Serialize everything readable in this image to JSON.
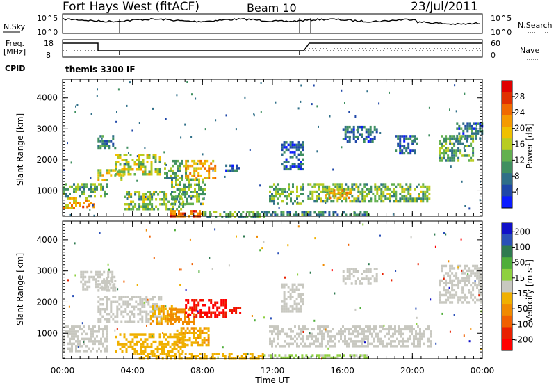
{
  "header": {
    "station": "Fort Hays West (fitACF)",
    "beam": "Beam 10",
    "date": "23/Jul/2011"
  },
  "panels": {
    "noise_left_label": "N.Sky",
    "noise_left_ticks": [
      "10^5",
      "10^0"
    ],
    "noise_right_ticks": [
      "10^5",
      "10^0"
    ],
    "noise_right_label": "N.Search",
    "freq_label_1": "Freq.",
    "freq_label_2": "[MHz]",
    "freq_ticks": [
      "18",
      "8"
    ],
    "nave_ticks": [
      "60",
      "0"
    ],
    "nave_label": "Nave",
    "cpid_label": "CPID",
    "cpid_value": "themis 3300 IF"
  },
  "colors": {
    "power_scale": [
      "#0b1bff",
      "#1f47a8",
      "#2f6f88",
      "#3f8f60",
      "#63b050",
      "#b8cc20",
      "#f0c000",
      "#f59a00",
      "#f06a00",
      "#e03000",
      "#e00000"
    ],
    "velocity_scale": [
      "#1010c8",
      "#2a50b8",
      "#2f7a50",
      "#4fae3a",
      "#8ed040",
      "#c8c8c0",
      "#f0b000",
      "#f08a00",
      "#f06000",
      "#e82000",
      "#ff0000"
    ]
  },
  "chart_data": [
    {
      "type": "heatmap",
      "ylabel": "Slant Range [km]",
      "xlabel": "",
      "x_ticks": [
        "00:00",
        "04:00",
        "08:00",
        "12:00",
        "16:00",
        "20:00",
        "00:00"
      ],
      "xlim_hours": [
        0,
        24
      ],
      "y_ticks": [
        "1000",
        "2000",
        "3000",
        "4000"
      ],
      "ylim_km": [
        180,
        4600
      ],
      "colorbar_label": "Power [dB]",
      "colorbar_ticks": [
        "4",
        "8",
        "12",
        "16",
        "20",
        "24",
        "28"
      ],
      "clim": [
        0,
        32
      ],
      "echo_regions": [
        {
          "t0": 0.0,
          "t1": 1.6,
          "r0": 450,
          "r1": 800,
          "v": 21
        },
        {
          "t0": 0.0,
          "t1": 2.6,
          "r0": 800,
          "r1": 1250,
          "v": 12
        },
        {
          "t0": 1.0,
          "t1": 1.8,
          "r0": 450,
          "r1": 600,
          "v": 27
        },
        {
          "t0": 2.0,
          "t1": 3.5,
          "r0": 1350,
          "r1": 1700,
          "v": 17
        },
        {
          "t0": 3.0,
          "t1": 5.6,
          "r0": 1550,
          "r1": 2200,
          "v": 16
        },
        {
          "t0": 2.0,
          "t1": 3.0,
          "r0": 2400,
          "r1": 2800,
          "v": 8
        },
        {
          "t0": 3.5,
          "t1": 7.0,
          "r0": 400,
          "r1": 1000,
          "v": 13
        },
        {
          "t0": 5.8,
          "t1": 7.2,
          "r0": 1400,
          "r1": 2000,
          "v": 12
        },
        {
          "t0": 7.0,
          "t1": 8.7,
          "r0": 1400,
          "r1": 2000,
          "v": 21
        },
        {
          "t0": 6.2,
          "t1": 8.2,
          "r0": 600,
          "r1": 1400,
          "v": 13
        },
        {
          "t0": 6.0,
          "t1": 8.0,
          "r0": 200,
          "r1": 380,
          "v": 26
        },
        {
          "t0": 8.0,
          "t1": 11.5,
          "r0": 200,
          "r1": 360,
          "v": 12
        },
        {
          "t0": 9.3,
          "t1": 10.1,
          "r0": 1650,
          "r1": 1850,
          "v": 6
        },
        {
          "t0": 11.8,
          "t1": 13.8,
          "r0": 600,
          "r1": 1250,
          "v": 12
        },
        {
          "t0": 11.5,
          "t1": 17.5,
          "r0": 200,
          "r1": 340,
          "v": 10
        },
        {
          "t0": 14.0,
          "t1": 21.0,
          "r0": 700,
          "r1": 1250,
          "v": 13
        },
        {
          "t0": 15.0,
          "t1": 16.5,
          "r0": 800,
          "r1": 1050,
          "v": 21
        },
        {
          "t0": 12.5,
          "t1": 13.8,
          "r0": 1700,
          "r1": 2600,
          "v": 6
        },
        {
          "t0": 16.0,
          "t1": 18.0,
          "r0": 2600,
          "r1": 3100,
          "v": 7
        },
        {
          "t0": 19.0,
          "t1": 20.2,
          "r0": 2200,
          "r1": 2800,
          "v": 6
        },
        {
          "t0": 21.5,
          "t1": 23.5,
          "r0": 2000,
          "r1": 2800,
          "v": 11
        },
        {
          "t0": 22.5,
          "t1": 24.0,
          "r0": 2700,
          "r1": 3200,
          "v": 7
        }
      ]
    },
    {
      "type": "heatmap",
      "ylabel": "Slant Range [km]",
      "xlabel": "Time UT",
      "x_ticks": [
        "00:00",
        "04:00",
        "08:00",
        "12:00",
        "16:00",
        "20:00",
        "00:00"
      ],
      "xlim_hours": [
        0,
        24
      ],
      "y_ticks": [
        "1000",
        "2000",
        "3000",
        "4000"
      ],
      "ylim_km": [
        180,
        4600
      ],
      "colorbar_label": "Velocity [m s",
      "colorbar_label_sup": "-1",
      "colorbar_label_end": "]",
      "colorbar_ticks": [
        "200",
        "100",
        "50",
        "15",
        "-15",
        "-50",
        "-100",
        "-200"
      ],
      "clim": [
        -250,
        250
      ],
      "echo_regions": [
        {
          "t0": 0.0,
          "t1": 2.6,
          "r0": 450,
          "r1": 1250,
          "v": 0
        },
        {
          "t0": 2.0,
          "t1": 5.6,
          "r0": 1350,
          "r1": 2200,
          "v": 0
        },
        {
          "t0": 2.0,
          "t1": 3.0,
          "r0": 2400,
          "r1": 2800,
          "v": 0
        },
        {
          "t0": 3.0,
          "t1": 7.0,
          "r0": 400,
          "r1": 1000,
          "v": -40
        },
        {
          "t0": 5.0,
          "t1": 6.5,
          "r0": 1300,
          "r1": 1900,
          "v": -60
        },
        {
          "t0": 6.0,
          "t1": 7.5,
          "r0": 1300,
          "r1": 1800,
          "v": -90
        },
        {
          "t0": 7.0,
          "t1": 9.3,
          "r0": 1500,
          "r1": 2100,
          "v": -210
        },
        {
          "t0": 9.5,
          "t1": 10.2,
          "r0": 1650,
          "r1": 1850,
          "v": -200
        },
        {
          "t0": 6.5,
          "t1": 8.5,
          "r0": 600,
          "r1": 1200,
          "v": -60
        },
        {
          "t0": 4.0,
          "t1": 11.5,
          "r0": 200,
          "r1": 380,
          "v": -50
        },
        {
          "t0": 11.5,
          "t1": 17.5,
          "r0": 200,
          "r1": 330,
          "v": 30
        },
        {
          "t0": 11.8,
          "t1": 21.0,
          "r0": 600,
          "r1": 1250,
          "v": 0
        },
        {
          "t0": 12.5,
          "t1": 13.8,
          "r0": 1700,
          "r1": 2600,
          "v": 0
        },
        {
          "t0": 16.0,
          "t1": 18.0,
          "r0": 2600,
          "r1": 3100,
          "v": 0
        },
        {
          "t0": 21.5,
          "t1": 24.0,
          "r0": 2000,
          "r1": 3200,
          "v": 0
        },
        {
          "t0": 1.0,
          "t1": 3.0,
          "r0": 2400,
          "r1": 3000,
          "v": 0
        }
      ]
    }
  ]
}
